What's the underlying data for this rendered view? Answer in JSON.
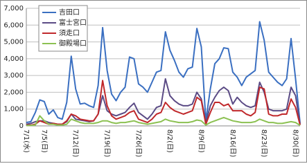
{
  "chart_data": {
    "type": "line",
    "categories": [
      "7/1(水)",
      null,
      null,
      null,
      "7/5(日)",
      null,
      null,
      null,
      null,
      null,
      null,
      "7/12(日)",
      null,
      null,
      null,
      null,
      null,
      null,
      "7/19(日)",
      null,
      null,
      null,
      null,
      null,
      null,
      "7/26(日)",
      null,
      null,
      null,
      null,
      null,
      null,
      "8/2(日)",
      null,
      null,
      null,
      null,
      null,
      null,
      "8/9(日)",
      null,
      null,
      null,
      null,
      null,
      null,
      "8/16(日)",
      null,
      null,
      null,
      null,
      null,
      null,
      "8/23(日)",
      null,
      null,
      null,
      null,
      null,
      null,
      "8/30(日)",
      null
    ],
    "series": [
      {
        "name": "吉田口",
        "color": "#3a6fc1",
        "values": [
          200,
          250,
          800,
          1550,
          1450,
          700,
          950,
          500,
          400,
          1400,
          4150,
          2200,
          1300,
          1350,
          1200,
          1100,
          2400,
          5850,
          3300,
          1900,
          1500,
          2000,
          2300,
          4100,
          4000,
          2500,
          2300,
          2000,
          2600,
          3200,
          3300,
          5600,
          4500,
          3900,
          3200,
          2900,
          3400,
          3500,
          5800,
          4700,
          300,
          2200,
          3700,
          4000,
          4650,
          4600,
          3200,
          2900,
          2400,
          2900,
          3100,
          3300,
          6200,
          5100,
          3200,
          2900,
          2600,
          2400,
          2800,
          5200,
          2800,
          150
        ]
      },
      {
        "name": "富士宮口",
        "color": "#5b4b85",
        "values": [
          100,
          150,
          250,
          300,
          300,
          200,
          150,
          100,
          100,
          250,
          700,
          400,
          350,
          300,
          250,
          300,
          700,
          1800,
          900,
          700,
          600,
          700,
          800,
          1100,
          1350,
          800,
          600,
          400,
          700,
          1100,
          1200,
          2800,
          1800,
          1500,
          1300,
          1200,
          1200,
          1300,
          2000,
          1600,
          200,
          1200,
          1700,
          2100,
          2300,
          2100,
          1300,
          1700,
          1400,
          1200,
          1100,
          1200,
          2600,
          2000,
          1000,
          900,
          900,
          900,
          1000,
          2300,
          1800,
          100
        ]
      },
      {
        "name": "須走口",
        "color": "#c0282b",
        "values": [
          50,
          50,
          100,
          300,
          200,
          100,
          150,
          100,
          100,
          300,
          700,
          600,
          400,
          350,
          300,
          300,
          700,
          2700,
          1200,
          600,
          400,
          500,
          600,
          800,
          900,
          400,
          300,
          200,
          400,
          700,
          800,
          1400,
          1100,
          900,
          800,
          700,
          800,
          900,
          1700,
          1500,
          100,
          800,
          1400,
          1400,
          1200,
          1300,
          900,
          900,
          900,
          700,
          600,
          800,
          2300,
          2200,
          700,
          600,
          600,
          700,
          700,
          1600,
          1100,
          50
        ]
      },
      {
        "name": "御殿場口",
        "color": "#8cc152",
        "values": [
          20,
          30,
          50,
          600,
          300,
          100,
          100,
          50,
          50,
          100,
          400,
          300,
          200,
          150,
          150,
          150,
          200,
          300,
          300,
          200,
          150,
          200,
          200,
          250,
          300,
          200,
          150,
          100,
          150,
          200,
          250,
          400,
          300,
          250,
          200,
          200,
          200,
          250,
          350,
          300,
          50,
          200,
          300,
          400,
          500,
          400,
          300,
          250,
          200,
          200,
          200,
          250,
          400,
          300,
          200,
          200,
          150,
          150,
          200,
          250,
          200,
          30
        ]
      }
    ],
    "ylim": [
      0,
      7000
    ],
    "yticks": [
      0,
      {
        "value": 1000,
        "label": "1,000"
      },
      {
        "value": 2000,
        "label": "2,000"
      },
      {
        "value": 3000,
        "label": "3,000"
      },
      {
        "value": 4000,
        "label": "4,000"
      },
      {
        "value": 5000,
        "label": "5,000"
      },
      {
        "value": 6000,
        "label": "6,000"
      },
      {
        "value": 7000,
        "label": "7,000"
      }
    ],
    "grid": true,
    "legend": "upper-left"
  }
}
